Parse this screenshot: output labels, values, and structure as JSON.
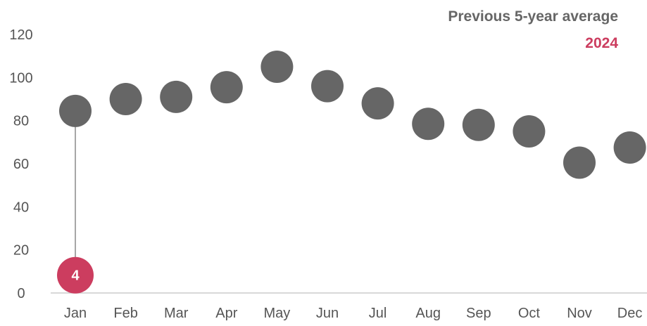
{
  "chart_data": {
    "type": "scatter",
    "categories": [
      "Jan",
      "Feb",
      "Mar",
      "Apr",
      "May",
      "Jun",
      "Jul",
      "Aug",
      "Sep",
      "Oct",
      "Nov",
      "Dec"
    ],
    "series": [
      {
        "name": "Previous 5-year average",
        "color": "#666666",
        "values": [
          84.5,
          90,
          91,
          95.5,
          105,
          96,
          88,
          78.5,
          78,
          75,
          60.5,
          67.5
        ]
      },
      {
        "name": "2024",
        "color": "#cc3d5f",
        "values": [
          4,
          null,
          null,
          null,
          null,
          null,
          null,
          null,
          null,
          null,
          null,
          null
        ],
        "data_labels": [
          "4"
        ]
      }
    ],
    "yticks": [
      0,
      20,
      40,
      60,
      80,
      100,
      120
    ],
    "ylim": [
      0,
      120
    ],
    "grid": false,
    "legend_position": "top-right",
    "connector": "vertical line from 2024 value to 5-year average for Jan"
  }
}
